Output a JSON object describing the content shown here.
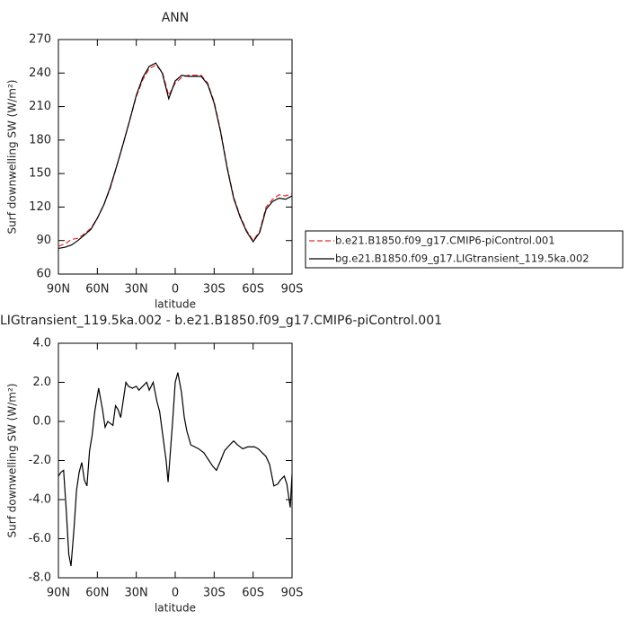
{
  "chart_data": [
    {
      "type": "line",
      "title": "ANN",
      "x_label": "latitude",
      "y_label": "Surf downwelling SW (W/m²)",
      "x": [
        90,
        85,
        80,
        75,
        70,
        65,
        60,
        55,
        50,
        45,
        40,
        35,
        30,
        25,
        20,
        15,
        10,
        5,
        0,
        -5,
        -10,
        -15,
        -20,
        -25,
        -30,
        -35,
        -40,
        -45,
        -50,
        -55,
        -60,
        -65,
        -70,
        -75,
        -80,
        -85,
        -90
      ],
      "series": [
        {
          "name": "b.e21.B1850.f09_g17.CMIP6-piControl.001",
          "color": "#e8282c",
          "linestyle": "dashed",
          "values": [
            85,
            87,
            91,
            92,
            96,
            101,
            110,
            122,
            137,
            157,
            177,
            198,
            219,
            234,
            244,
            247,
            241,
            220,
            231,
            236,
            238,
            238,
            238,
            231,
            214,
            188,
            156,
            129,
            112,
            99,
            90,
            98,
            120,
            127,
            131,
            130,
            132
          ]
        },
        {
          "name": "bg.e21.B1850.f09_g17.LIGtransient_119.5ka.002",
          "color": "#000000",
          "linestyle": "solid",
          "values": [
            83,
            84,
            86,
            90,
            95,
            100,
            110,
            122,
            138,
            157,
            177,
            198,
            220,
            236,
            246,
            249,
            240,
            217,
            233,
            238,
            237,
            237,
            237,
            230,
            213,
            187,
            155,
            128,
            111,
            98,
            89,
            97,
            118,
            125,
            128,
            127,
            130
          ]
        }
      ],
      "xlim": [
        90,
        -90
      ],
      "xticks": [
        {
          "value": 90,
          "label": "90N"
        },
        {
          "value": 60,
          "label": "60N"
        },
        {
          "value": 30,
          "label": "30N"
        },
        0,
        {
          "value": -30,
          "label": "30S"
        },
        {
          "value": -60,
          "label": "60S"
        },
        {
          "value": -90,
          "label": "90S"
        }
      ],
      "ylim": [
        60,
        270
      ],
      "yticks": [
        60,
        90,
        120,
        150,
        180,
        210,
        240,
        270
      ],
      "legend": "right"
    },
    {
      "type": "line",
      "title": "LIGtransient_119.5ka.002 - b.e21.B1850.f09_g17.CMIP6-piControl.001",
      "x_label": "latitude",
      "y_label": "Surf downwelling SW (W/m²)",
      "x": [
        90,
        88,
        86,
        84,
        82,
        80.3,
        78,
        76,
        74,
        72,
        70,
        68,
        66,
        64,
        62,
        59,
        56,
        54,
        52,
        50,
        48,
        46,
        44,
        42,
        38,
        36,
        33,
        30,
        28,
        25,
        22,
        20,
        17,
        14,
        12,
        9,
        7,
        5.5,
        4,
        2,
        0,
        -2,
        -4.8,
        -7,
        -9,
        -12,
        -15,
        -18,
        -22,
        -26,
        -29,
        -31.8,
        -35,
        -38,
        -42,
        -45,
        -48,
        -52,
        -56,
        -61,
        -64,
        -67,
        -70,
        -72.7,
        -76,
        -79,
        -81,
        -84,
        -86,
        -88.6,
        -90
      ],
      "values": [
        -2.8,
        -2.6,
        -2.5,
        -4.5,
        -6.8,
        -7.4,
        -5.5,
        -3.5,
        -2.6,
        -2.1,
        -3.0,
        -3.3,
        -1.5,
        -0.7,
        0.5,
        1.7,
        0.6,
        -0.3,
        0,
        -0.1,
        -0.2,
        0.8,
        0.6,
        0.2,
        2.0,
        1.8,
        1.7,
        1.8,
        1.6,
        1.8,
        2.0,
        1.6,
        2.0,
        1.0,
        0.5,
        -1.0,
        -2.0,
        -3.1,
        -1.8,
        0.0,
        2.0,
        2.5,
        1.5,
        0.2,
        -0.5,
        -1.2,
        -1.3,
        -1.4,
        -1.6,
        -2.0,
        -2.3,
        -2.5,
        -2.0,
        -1.5,
        -1.2,
        -1.0,
        -1.2,
        -1.4,
        -1.3,
        -1.3,
        -1.4,
        -1.6,
        -1.8,
        -2.2,
        -3.3,
        -3.2,
        -3.0,
        -2.8,
        -3.2,
        -4.4,
        -2.7
      ],
      "color": "#000000",
      "xlim": [
        90,
        -90
      ],
      "xticks": [
        {
          "value": 90,
          "label": "90N"
        },
        {
          "value": 60,
          "label": "60N"
        },
        {
          "value": 30,
          "label": "30N"
        },
        0,
        {
          "value": -30,
          "label": "30S"
        },
        {
          "value": -60,
          "label": "60S"
        },
        {
          "value": -90,
          "label": "90S"
        }
      ],
      "ylim": [
        -8,
        4
      ],
      "yticks": [
        {
          "value": -8,
          "label": "-8.0"
        },
        {
          "value": -6,
          "label": "-6.0"
        },
        {
          "value": -4,
          "label": "-4.0"
        },
        {
          "value": -2,
          "label": "-2.0"
        },
        {
          "value": 0,
          "label": "0.0"
        },
        {
          "value": 2,
          "label": "2.0"
        },
        {
          "value": 4,
          "label": "4.0"
        }
      ]
    }
  ]
}
